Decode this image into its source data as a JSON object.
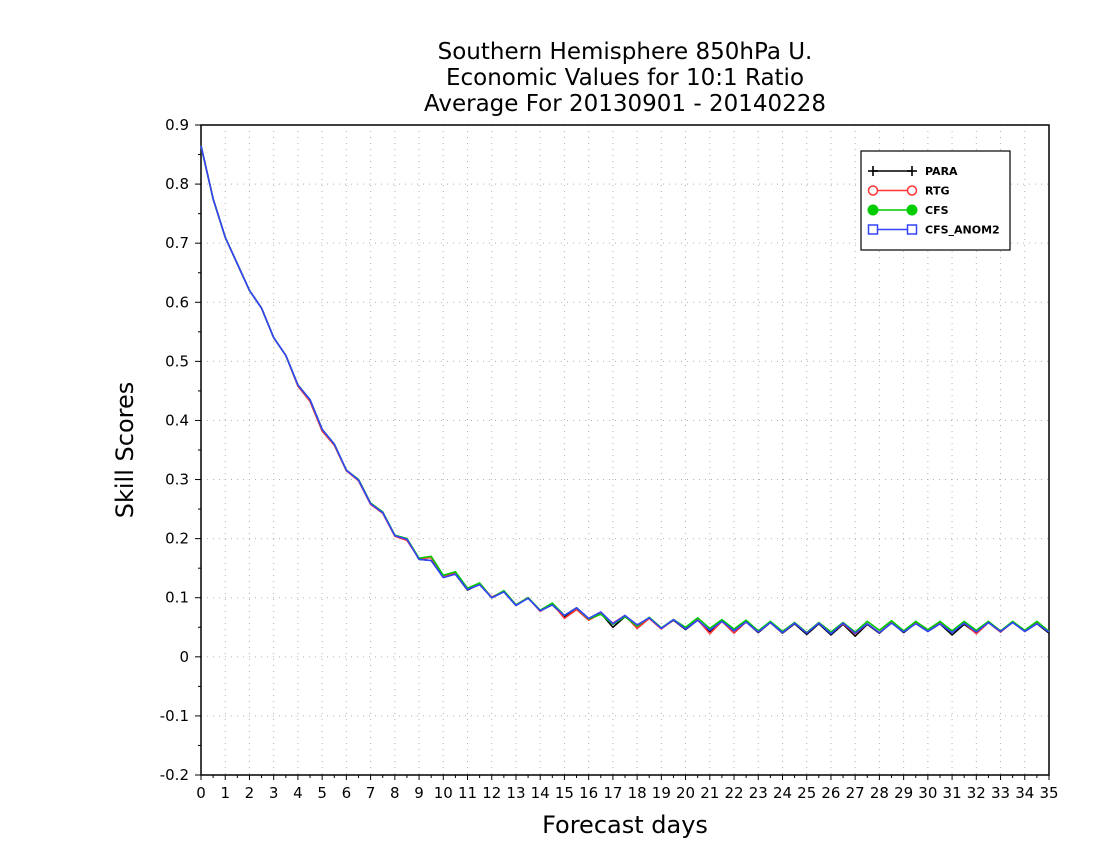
{
  "chart_data": {
    "type": "line",
    "title": [
      "Southern Hemisphere 850hPa U.",
      "Economic Values for 10:1 Ratio",
      "Average For 20130901 - 20140228"
    ],
    "xlabel": "Forecast days",
    "ylabel": "Skill Scores",
    "xlim": [
      0,
      35
    ],
    "ylim": [
      -0.2,
      0.9
    ],
    "xticks": [
      "0",
      "1",
      "2",
      "3",
      "4",
      "5",
      "6",
      "7",
      "8",
      "9",
      "10",
      "11",
      "12",
      "13",
      "14",
      "15",
      "16",
      "17",
      "18",
      "19",
      "20",
      "21",
      "22",
      "23",
      "24",
      "25",
      "26",
      "27",
      "28",
      "29",
      "30",
      "31",
      "32",
      "33",
      "34",
      "35"
    ],
    "yticks": [
      "0.9",
      "0.8",
      "0.7",
      "0.6",
      "0.5",
      "0.4",
      "0.3",
      "0.2",
      "0.1",
      "0",
      "-0.1",
      "-0.2"
    ],
    "grid": true,
    "legend_placement": "top-right",
    "x": [
      0,
      0.5,
      1,
      1.5,
      2,
      2.5,
      3,
      3.5,
      4,
      4.5,
      5,
      5.5,
      6,
      6.5,
      7,
      7.5,
      8,
      8.5,
      9,
      9.5,
      10,
      10.5,
      11,
      11.5,
      12,
      12.5,
      13,
      13.5,
      14,
      14.5,
      15,
      15.5,
      16,
      16.5,
      17,
      17.5,
      18,
      18.5,
      19,
      19.5,
      20,
      20.5,
      21,
      21.5,
      22,
      22.5,
      23,
      23.5,
      24,
      24.5,
      25,
      25.5,
      26,
      26.5,
      27,
      27.5,
      28,
      28.5,
      29,
      29.5,
      30,
      30.5,
      31,
      31.5,
      32,
      32.5,
      33,
      33.5,
      34,
      34.5,
      35
    ],
    "series": [
      {
        "name": "PARA",
        "color": "#000000",
        "marker": "plus",
        "values": [
          0.865,
          0.775,
          0.71,
          0.665,
          0.62,
          0.59,
          0.54,
          0.51,
          0.46,
          0.435,
          0.385,
          0.36,
          0.315,
          0.3,
          0.26,
          0.245,
          0.205,
          0.2,
          0.165,
          0.163,
          0.135,
          0.14,
          0.113,
          0.123,
          0.1,
          0.11,
          0.087,
          0.1,
          0.078,
          0.088,
          0.068,
          0.082,
          0.063,
          0.074,
          0.05,
          0.068,
          0.052,
          0.066,
          0.048,
          0.062,
          0.046,
          0.062,
          0.043,
          0.06,
          0.044,
          0.059,
          0.041,
          0.058,
          0.04,
          0.056,
          0.038,
          0.056,
          0.037,
          0.055,
          0.035,
          0.055,
          0.04,
          0.058,
          0.041,
          0.057,
          0.043,
          0.056,
          0.037,
          0.055,
          0.04,
          0.058,
          0.042,
          0.059,
          0.043,
          0.056,
          0.04
        ]
      },
      {
        "name": "RTG",
        "color": "#ff3333",
        "marker": "open-circle",
        "values": [
          0.865,
          0.775,
          0.71,
          0.665,
          0.62,
          0.59,
          0.54,
          0.51,
          0.458,
          0.432,
          0.382,
          0.358,
          0.315,
          0.298,
          0.258,
          0.243,
          0.204,
          0.197,
          0.166,
          0.168,
          0.136,
          0.142,
          0.114,
          0.124,
          0.101,
          0.111,
          0.088,
          0.1,
          0.077,
          0.09,
          0.065,
          0.08,
          0.062,
          0.073,
          0.057,
          0.07,
          0.048,
          0.065,
          0.047,
          0.063,
          0.047,
          0.063,
          0.039,
          0.06,
          0.04,
          0.059,
          0.042,
          0.058,
          0.041,
          0.057,
          0.041,
          0.057,
          0.04,
          0.056,
          0.039,
          0.056,
          0.041,
          0.058,
          0.043,
          0.058,
          0.045,
          0.057,
          0.043,
          0.057,
          0.039,
          0.058,
          0.042,
          0.059,
          0.043,
          0.057,
          0.042
        ]
      },
      {
        "name": "CFS",
        "color": "#00cc00",
        "marker": "filled-circle",
        "values": [
          0.865,
          0.775,
          0.71,
          0.665,
          0.62,
          0.59,
          0.54,
          0.51,
          0.46,
          0.435,
          0.385,
          0.36,
          0.316,
          0.3,
          0.26,
          0.245,
          0.206,
          0.2,
          0.167,
          0.17,
          0.138,
          0.144,
          0.116,
          0.125,
          0.1,
          0.112,
          0.088,
          0.1,
          0.079,
          0.091,
          0.07,
          0.083,
          0.064,
          0.072,
          0.055,
          0.068,
          0.052,
          0.067,
          0.049,
          0.063,
          0.05,
          0.066,
          0.048,
          0.063,
          0.047,
          0.062,
          0.044,
          0.06,
          0.043,
          0.058,
          0.041,
          0.058,
          0.042,
          0.058,
          0.042,
          0.06,
          0.045,
          0.061,
          0.044,
          0.06,
          0.046,
          0.06,
          0.044,
          0.06,
          0.045,
          0.06,
          0.044,
          0.06,
          0.045,
          0.06,
          0.043
        ]
      },
      {
        "name": "CFS_ANOM2",
        "color": "#3344ff",
        "marker": "open-square",
        "values": [
          0.865,
          0.775,
          0.71,
          0.665,
          0.62,
          0.59,
          0.54,
          0.51,
          0.46,
          0.435,
          0.385,
          0.36,
          0.316,
          0.299,
          0.259,
          0.244,
          0.205,
          0.199,
          0.165,
          0.163,
          0.134,
          0.14,
          0.114,
          0.122,
          0.1,
          0.11,
          0.087,
          0.099,
          0.078,
          0.088,
          0.07,
          0.083,
          0.065,
          0.076,
          0.056,
          0.07,
          0.054,
          0.066,
          0.048,
          0.063,
          0.047,
          0.062,
          0.045,
          0.06,
          0.044,
          0.059,
          0.042,
          0.058,
          0.041,
          0.057,
          0.04,
          0.057,
          0.039,
          0.057,
          0.04,
          0.056,
          0.041,
          0.057,
          0.042,
          0.056,
          0.043,
          0.056,
          0.041,
          0.057,
          0.042,
          0.058,
          0.043,
          0.058,
          0.043,
          0.056,
          0.042
        ]
      }
    ]
  }
}
